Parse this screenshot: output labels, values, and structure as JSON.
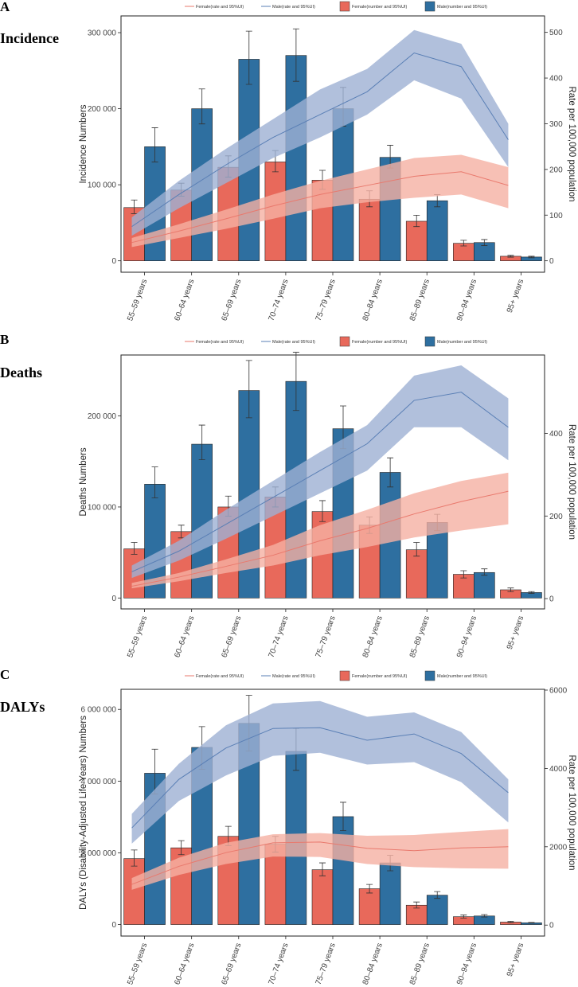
{
  "figure": {
    "legend": {
      "female_rate": "Female(rate and 95%UI)",
      "male_rate": "Male(rate and 95%UI)",
      "female_number": "Female(number and 95%UI)",
      "male_number": "Male(number and 95%UI)"
    },
    "colors": {
      "female_bar": "#E8695B",
      "male_bar": "#2E6FA0",
      "female_line": "#E9796D",
      "male_line": "#5A7FB5",
      "female_band": "#F5B0A3",
      "male_band": "#9DB0D3"
    }
  },
  "chart_data": [
    {
      "type": "bar",
      "panel_letter": "A",
      "title": "Incidence",
      "ylabel": "Incidence Numbers",
      "y2label": "Rate per 100,000 population",
      "categories": [
        "55–59 years",
        "60–64 years",
        "65–69 years",
        "70–74 years",
        "75–79 years",
        "80–84 years",
        "85–89 years",
        "90–94 years",
        "95+ years"
      ],
      "ylim": [
        -15000,
        322000
      ],
      "y_ticks": [
        0,
        100000,
        200000,
        300000
      ],
      "y_tick_labels": [
        "0",
        "100 000",
        "200 000",
        "300 000"
      ],
      "y2lim": [
        -25,
        536
      ],
      "y2_ticks": [
        0,
        100,
        200,
        300,
        400,
        500
      ],
      "y2_tick_labels": [
        "0",
        "100",
        "200",
        "300",
        "400",
        "500"
      ],
      "series": [
        {
          "name": "Female(number and 95%UI)",
          "values": [
            70000,
            93000,
            123000,
            130000,
            106000,
            81000,
            52000,
            23000,
            6000
          ],
          "lower": [
            62000,
            85000,
            110000,
            117000,
            94000,
            71000,
            45000,
            19500,
            4800
          ],
          "upper": [
            80000,
            102000,
            138000,
            145000,
            119000,
            92000,
            60000,
            27000,
            7200
          ]
        },
        {
          "name": "Male(number and 95%UI)",
          "values": [
            150000,
            200000,
            265000,
            270000,
            200000,
            136000,
            79000,
            24000,
            5000
          ],
          "lower": [
            130000,
            180000,
            232000,
            236000,
            177000,
            122000,
            71000,
            20000,
            4000
          ],
          "upper": [
            175000,
            226000,
            302000,
            305000,
            228000,
            152000,
            87000,
            28000,
            6000
          ]
        }
      ],
      "rate_series": [
        {
          "name": "Female(rate and 95%UI)",
          "values": [
            40,
            65,
            92,
            120,
            145,
            165,
            185,
            195,
            165
          ],
          "lower": [
            30,
            50,
            70,
            92,
            115,
            128,
            138,
            145,
            115
          ],
          "upper": [
            50,
            80,
            112,
            145,
            175,
            200,
            225,
            232,
            205
          ]
        },
        {
          "name": "Male(rate and 95%UI)",
          "values": [
            75,
            145,
            210,
            270,
            320,
            370,
            455,
            425,
            265
          ],
          "lower": [
            55,
            115,
            170,
            225,
            270,
            320,
            395,
            355,
            205
          ],
          "upper": [
            95,
            175,
            245,
            310,
            375,
            420,
            505,
            475,
            300
          ]
        }
      ]
    },
    {
      "type": "bar",
      "panel_letter": "B",
      "title": "Deaths",
      "ylabel": "Deaths Numbers",
      "y2label": "Rate per 100,000 population",
      "categories": [
        "55–59 years",
        "60–64 years",
        "65–69 years",
        "70–74 years",
        "75–79 years",
        "80–84 years",
        "85–89 years",
        "90–94 years",
        "95+ years"
      ],
      "ylim": [
        -12000,
        267000
      ],
      "y_ticks": [
        0,
        100000,
        200000
      ],
      "y_tick_labels": [
        "0",
        "100 000",
        "200 000"
      ],
      "y2lim": [
        -25,
        590
      ],
      "y2_ticks": [
        0,
        200,
        400
      ],
      "y2_tick_labels": [
        "0",
        "200",
        "400"
      ],
      "series": [
        {
          "name": "Female(number and 95%UI)",
          "values": [
            54000,
            73000,
            100000,
            111000,
            95000,
            80000,
            53000,
            26000,
            9000
          ],
          "lower": [
            48000,
            66000,
            90000,
            100000,
            84000,
            71000,
            46000,
            22000,
            7000
          ],
          "upper": [
            61000,
            80000,
            112000,
            122000,
            107000,
            89000,
            61000,
            30000,
            11000
          ]
        },
        {
          "name": "Male(number and 95%UI)",
          "values": [
            125000,
            169000,
            228000,
            238000,
            186000,
            138000,
            83000,
            28000,
            6000
          ],
          "lower": [
            110000,
            152000,
            198000,
            206000,
            164000,
            122000,
            74000,
            25000,
            5000
          ],
          "upper": [
            144000,
            190000,
            261000,
            270000,
            211000,
            154000,
            92000,
            32000,
            7000
          ]
        }
      ],
      "rate_series": [
        {
          "name": "Female(rate and 95%UI)",
          "values": [
            30,
            52,
            78,
            105,
            140,
            170,
            205,
            235,
            260
          ],
          "lower": [
            25,
            42,
            62,
            80,
            105,
            125,
            148,
            165,
            180
          ],
          "upper": [
            38,
            62,
            95,
            130,
            178,
            215,
            255,
            285,
            305
          ]
        },
        {
          "name": "Male(rate and 95%UI)",
          "values": [
            65,
            115,
            180,
            245,
            310,
            375,
            480,
            500,
            415
          ],
          "lower": [
            50,
            92,
            145,
            200,
            255,
            310,
            415,
            415,
            335
          ],
          "upper": [
            80,
            140,
            215,
            285,
            355,
            420,
            540,
            565,
            485
          ]
        }
      ]
    },
    {
      "type": "bar",
      "panel_letter": "C",
      "title": "DALYs",
      "ylabel": "DALYs (Disability-Adjusted Life Years) Numbers",
      "y2label": "Rate per 100,000 population",
      "categories": [
        "55–59 years",
        "60–64 years",
        "65–69 years",
        "70–74 years",
        "75–79 years",
        "80–84 years",
        "85–89 years",
        "90–94 years",
        "95+ years"
      ],
      "ylim": [
        -320000,
        6560000
      ],
      "y_ticks": [
        0,
        2000000,
        4000000,
        6000000
      ],
      "y_tick_labels": [
        "0",
        "2 000 000",
        "4 000 000",
        "6 000 000"
      ],
      "y2lim": [
        -280,
        6020
      ],
      "y2_ticks": [
        0,
        2000,
        4000,
        6000
      ],
      "y2_tick_labels": [
        "0",
        "2000",
        "4000",
        "6000"
      ],
      "series": [
        {
          "name": "Female(number and 95%UI)",
          "values": [
            1840000,
            2140000,
            2460000,
            2240000,
            1530000,
            1000000,
            540000,
            220000,
            70000
          ],
          "lower": [
            1630000,
            1950000,
            2200000,
            2020000,
            1360000,
            880000,
            460000,
            180000,
            55000
          ],
          "upper": [
            2080000,
            2340000,
            2740000,
            2460000,
            1720000,
            1120000,
            630000,
            270000,
            90000
          ]
        },
        {
          "name": "Male(number and 95%UI)",
          "values": [
            4220000,
            4940000,
            5610000,
            4830000,
            3010000,
            1720000,
            820000,
            240000,
            50000
          ],
          "lower": [
            3640000,
            4330000,
            4840000,
            4300000,
            2620000,
            1500000,
            730000,
            210000,
            40000
          ],
          "upper": [
            4890000,
            5520000,
            6390000,
            5470000,
            3410000,
            1930000,
            920000,
            280000,
            60000
          ]
        }
      ],
      "rate_series": [
        {
          "name": "Female(rate and 95%UI)",
          "values": [
            1040,
            1500,
            1850,
            2100,
            2120,
            1960,
            1900,
            1970,
            2000
          ],
          "lower": [
            900,
            1280,
            1560,
            1750,
            1740,
            1560,
            1480,
            1450,
            1440
          ],
          "upper": [
            1200,
            1720,
            2100,
            2320,
            2350,
            2280,
            2300,
            2380,
            2450
          ]
        },
        {
          "name": "Male(rate and 95%UI)",
          "values": [
            2480,
            3720,
            4520,
            5020,
            5040,
            4720,
            4880,
            4380,
            3380
          ],
          "lower": [
            2080,
            3170,
            3820,
            4320,
            4400,
            4100,
            4160,
            3650,
            2620
          ],
          "upper": [
            2840,
            4120,
            5100,
            5660,
            5720,
            5320,
            5430,
            4930,
            3720
          ]
        }
      ]
    }
  ]
}
